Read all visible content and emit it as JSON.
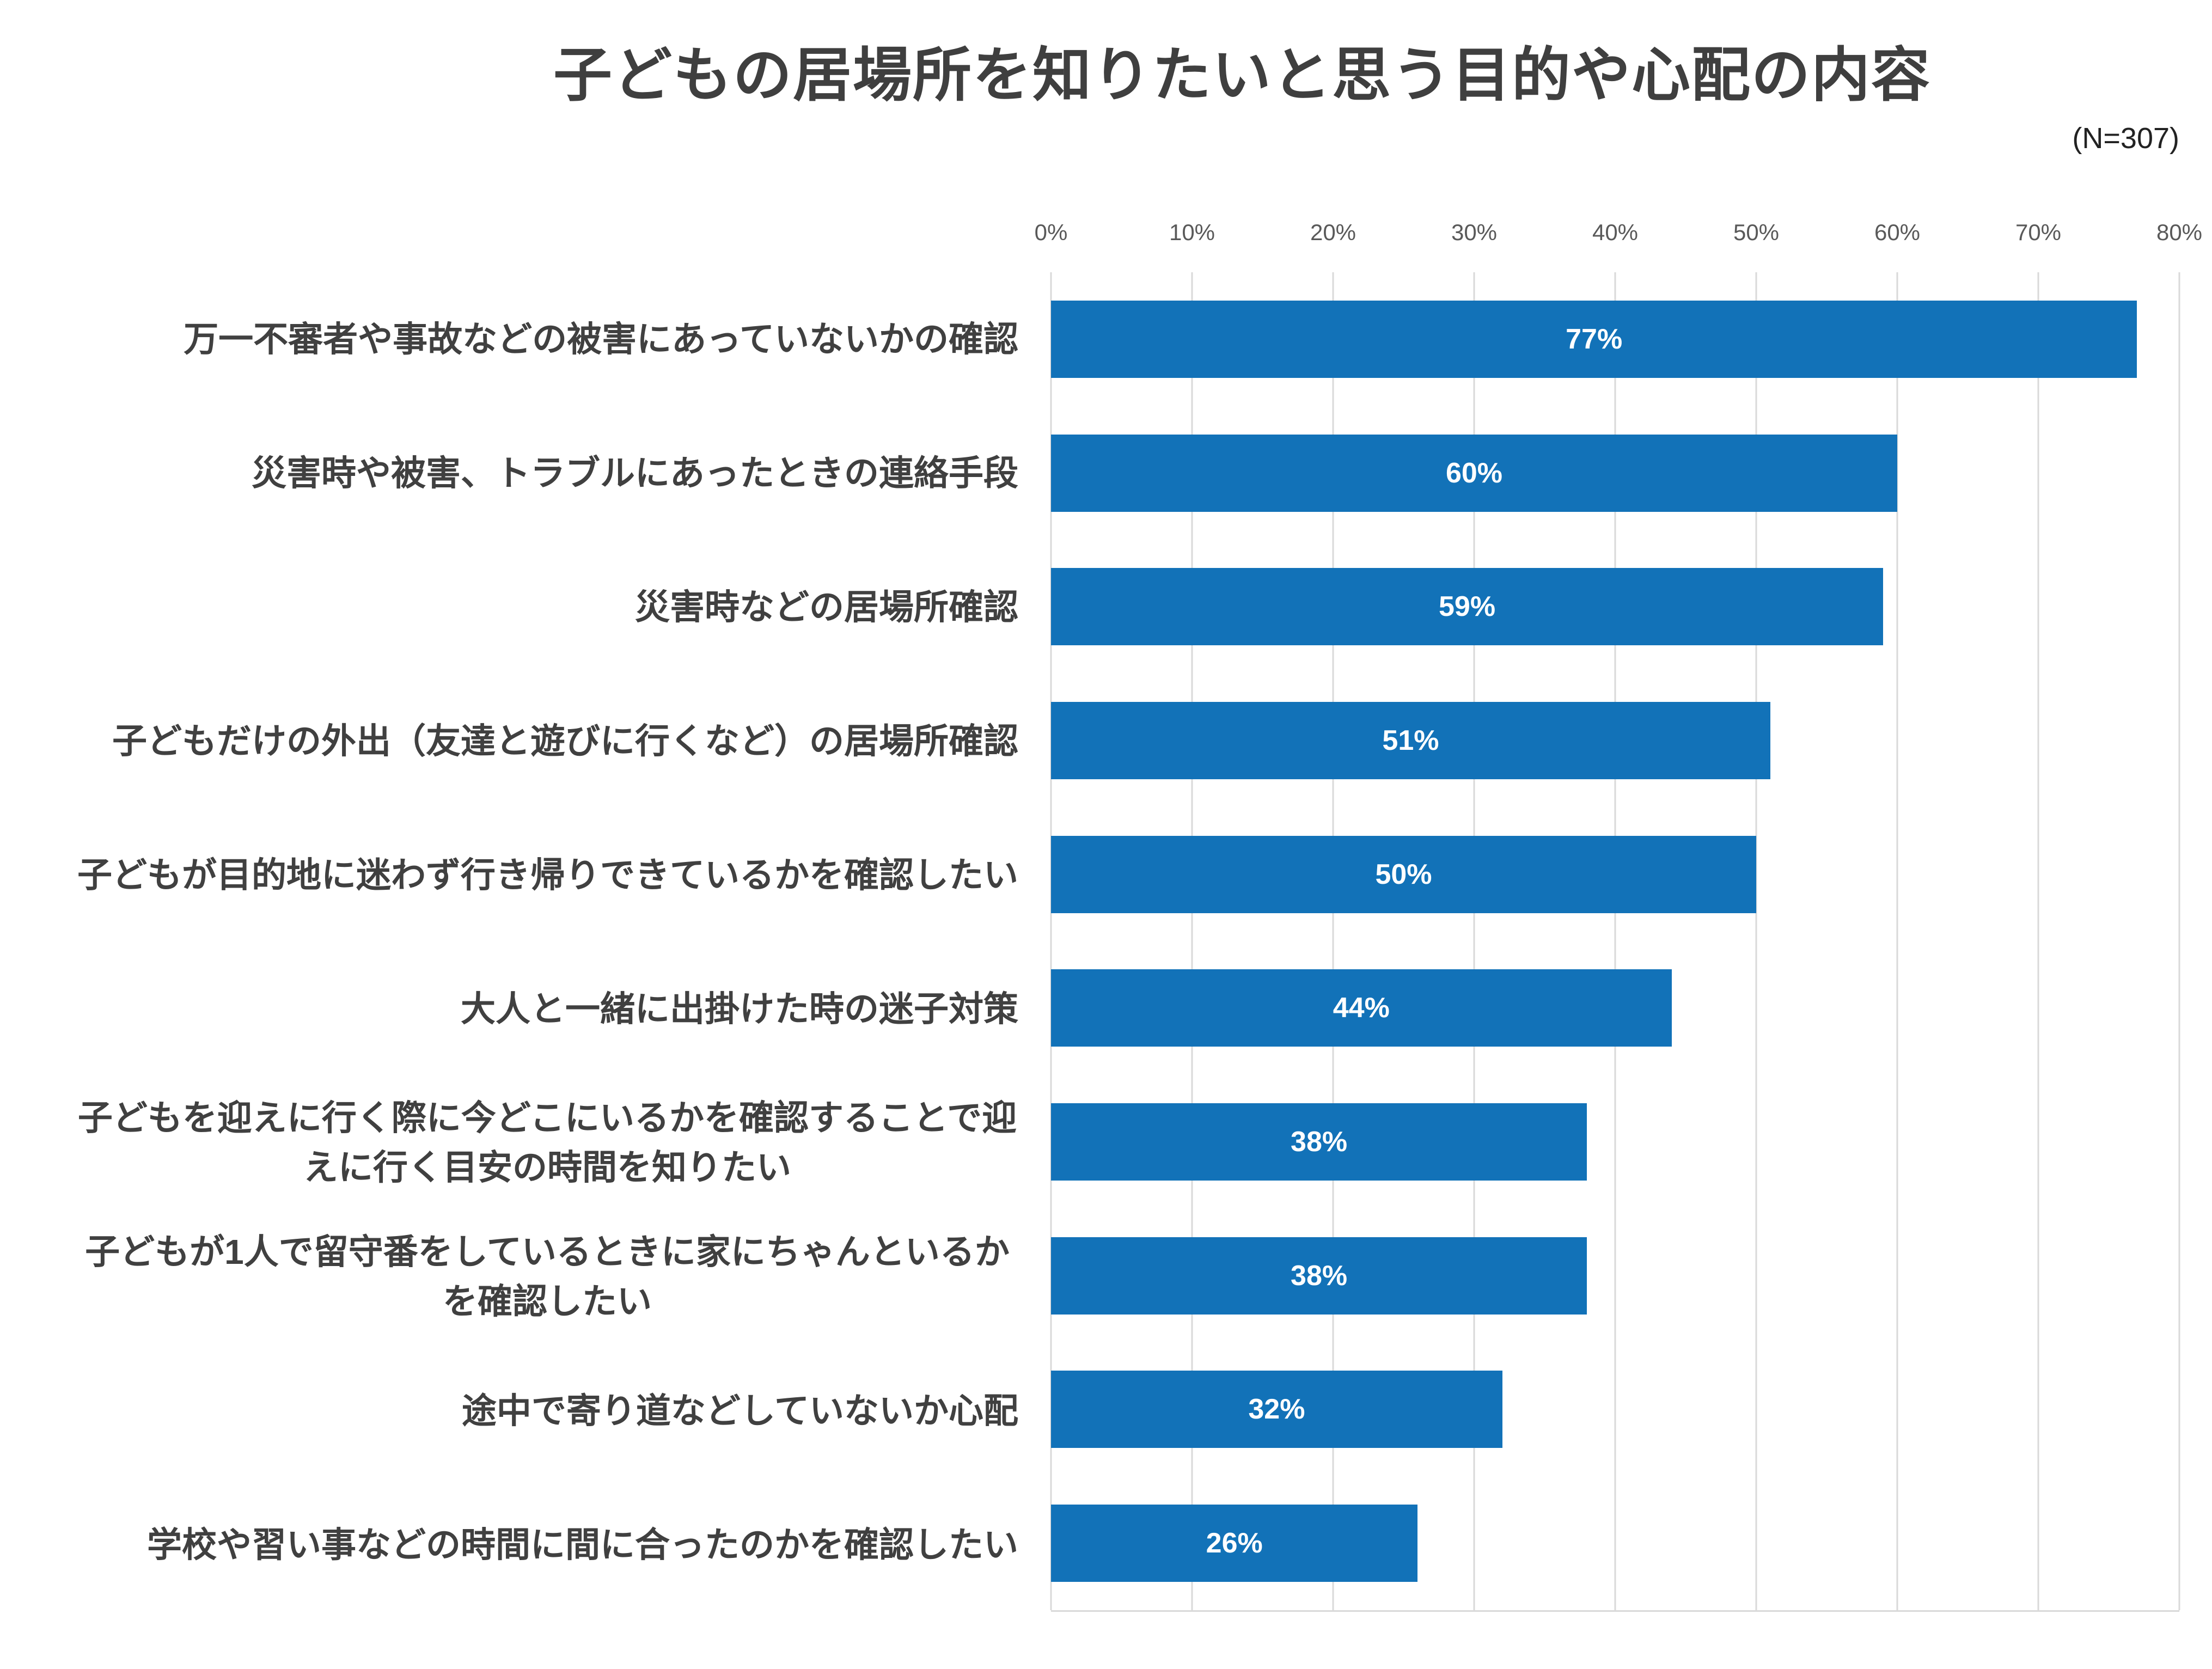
{
  "header": {
    "title": "子どもの居場所を知りたいと思う目的や心配の内容",
    "sample_size": "(N=307)"
  },
  "chart_data": {
    "type": "bar",
    "orientation": "horizontal",
    "title": "子どもの居場所を知りたいと思う目的や心配の内容",
    "sample_size": "(N=307)",
    "categories": [
      "万一不審者や事故などの被害にあっていないかの確認",
      "災害時や被害、トラブルにあったときの連絡手段",
      "災害時などの居場所確認",
      "子どもだけの外出（友達と遊びに行くなど）の居場所確認",
      "子どもが目的地に迷わず行き帰りできているかを確認したい",
      "大人と一緒に出掛けた時の迷子対策",
      "子どもを迎えに行く際に今どこにいるかを確認することで迎えに行く目安の時間を知りたい",
      "子どもが1人で留守番をしているときに家にちゃんといるかを確認したい",
      "途中で寄り道などしていないか心配",
      "学校や習い事などの時間に間に合ったのかを確認したい"
    ],
    "values": [
      77,
      60,
      59,
      51,
      50,
      44,
      38,
      38,
      32,
      26
    ],
    "value_labels": [
      "77%",
      "60%",
      "59%",
      "51%",
      "50%",
      "44%",
      "38%",
      "38%",
      "32%",
      "26%"
    ],
    "xlim": [
      0,
      80
    ],
    "x_ticks": [
      "0%",
      "10%",
      "20%",
      "30%",
      "40%",
      "50%",
      "60%",
      "70%",
      "80%"
    ],
    "grid": true,
    "legend": false,
    "bar_color": "#1272B8",
    "value_label_color": "#FFFFFF",
    "gridline_color": "#D9D9D9",
    "xlabel": "",
    "ylabel": ""
  }
}
